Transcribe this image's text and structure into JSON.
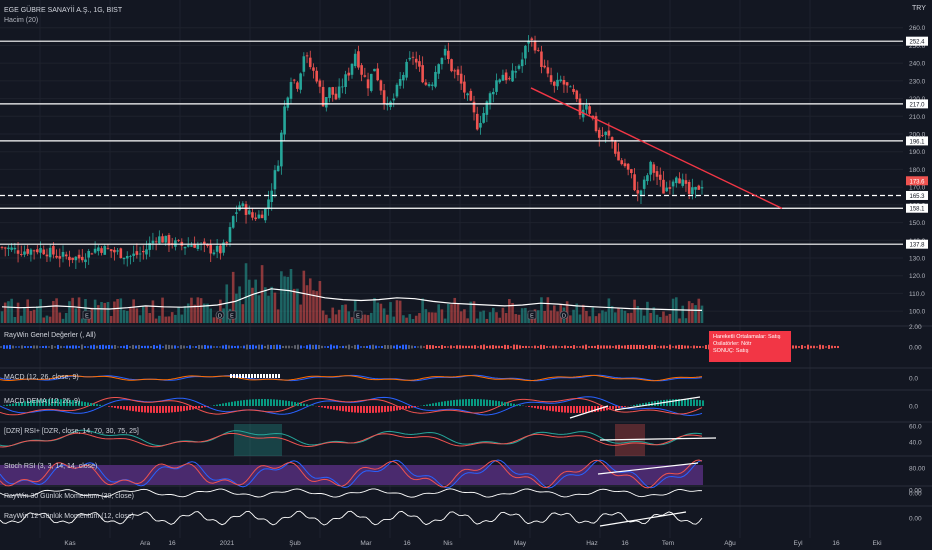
{
  "header": {
    "symbol_title": "EGE GÜBRE SANAYİİ A.Ş., 1G, BIST",
    "volume_label": "Hacim (20)",
    "currency": "TRY"
  },
  "colors": {
    "background": "#131722",
    "up": "#26a69a",
    "down": "#ef5350",
    "grid": "#1e222d",
    "text": "#b2b5be",
    "level_line": "#ffffff",
    "trendline": "#f23645",
    "stoch_band": "#4a2a6e"
  },
  "chart_data": {
    "type": "candlestick",
    "price_axis_ticks": [
      "260.0",
      "250.0",
      "240.0",
      "230.0",
      "220.0",
      "210.0",
      "200.0",
      "190.0",
      "180.0",
      "170.0",
      "160.0",
      "150.0",
      "140.0",
      "130.0",
      "120.0",
      "110.0",
      "100.0"
    ],
    "date_axis_ticks": [
      "Kas",
      "Ara",
      "16",
      "2021",
      "Şub",
      "Mar",
      "16",
      "Nis",
      "May",
      "Haz",
      "16",
      "Tem",
      "Ağu",
      "Eyl",
      "16",
      "Eki"
    ],
    "ylim": [
      95,
      270
    ],
    "level_labels": [
      "252.4",
      "217.0",
      "196.1",
      "173.6",
      "165.3",
      "158.1",
      "137.8"
    ],
    "levels": [
      252.4,
      217.0,
      196.1,
      165.3,
      158.1,
      137.8
    ],
    "dashed_level": 165.3,
    "last_price": 173.6,
    "trendline": {
      "from_date": "May",
      "from_price": 226,
      "to_date": "Tem",
      "to_price": 158
    },
    "price_path": [
      [
        0,
        136
      ],
      [
        6,
        134
      ],
      [
        12,
        135
      ],
      [
        18,
        131
      ],
      [
        24,
        130
      ],
      [
        30,
        136
      ],
      [
        36,
        133
      ],
      [
        40,
        131
      ],
      [
        44,
        133
      ],
      [
        48,
        142
      ],
      [
        52,
        139
      ],
      [
        56,
        137
      ],
      [
        60,
        138
      ],
      [
        64,
        135
      ],
      [
        68,
        134
      ],
      [
        70,
        138
      ],
      [
        72,
        153
      ],
      [
        74,
        160
      ],
      [
        76,
        157
      ],
      [
        78,
        153
      ],
      [
        80,
        154
      ],
      [
        82,
        157
      ],
      [
        84,
        170
      ],
      [
        86,
        185
      ],
      [
        88,
        215
      ],
      [
        90,
        232
      ],
      [
        92,
        228
      ],
      [
        94,
        245
      ],
      [
        96,
        238
      ],
      [
        98,
        232
      ],
      [
        100,
        218
      ],
      [
        102,
        225
      ],
      [
        104,
        220
      ],
      [
        106,
        228
      ],
      [
        108,
        235
      ],
      [
        110,
        246
      ],
      [
        112,
        235
      ],
      [
        114,
        228
      ],
      [
        116,
        238
      ],
      [
        118,
        226
      ],
      [
        120,
        214
      ],
      [
        122,
        220
      ],
      [
        124,
        230
      ],
      [
        126,
        238
      ],
      [
        128,
        244
      ],
      [
        130,
        236
      ],
      [
        132,
        228
      ],
      [
        134,
        230
      ],
      [
        136,
        242
      ],
      [
        138,
        246
      ],
      [
        140,
        237
      ],
      [
        142,
        232
      ],
      [
        144,
        224
      ],
      [
        146,
        216
      ],
      [
        148,
        205
      ],
      [
        150,
        212
      ],
      [
        152,
        222
      ],
      [
        154,
        230
      ],
      [
        156,
        234
      ],
      [
        158,
        230
      ],
      [
        160,
        236
      ],
      [
        162,
        242
      ],
      [
        164,
        254
      ],
      [
        166,
        250
      ],
      [
        168,
        240
      ],
      [
        170,
        232
      ],
      [
        172,
        226
      ],
      [
        174,
        230
      ],
      [
        176,
        226
      ],
      [
        178,
        222
      ],
      [
        180,
        212
      ],
      [
        182,
        218
      ],
      [
        184,
        208
      ],
      [
        186,
        198
      ],
      [
        188,
        200
      ],
      [
        190,
        196
      ],
      [
        192,
        185
      ],
      [
        194,
        182
      ],
      [
        196,
        176
      ],
      [
        198,
        165
      ],
      [
        200,
        172
      ],
      [
        202,
        182
      ],
      [
        204,
        176
      ],
      [
        206,
        168
      ],
      [
        208,
        172
      ],
      [
        210,
        178
      ],
      [
        212,
        172
      ],
      [
        214,
        166
      ],
      [
        216,
        168
      ],
      [
        218,
        172
      ]
    ],
    "volume_axis_tick": "2.00",
    "volume_markers": [
      "E",
      "E",
      "D",
      "E",
      "E",
      "D"
    ],
    "volume_ma": [
      0.9,
      0.85,
      0.88,
      0.95,
      0.9,
      0.8,
      0.78,
      0.85,
      0.95,
      0.9,
      0.88,
      0.92,
      1.0,
      1.2,
      1.6,
      1.9,
      1.8,
      1.6,
      1.4,
      1.3,
      1.25,
      1.3,
      1.4,
      1.35,
      1.2,
      1.1,
      1.05,
      1.0,
      0.95,
      1.0,
      1.1,
      1.05,
      0.95,
      0.9,
      0.85,
      0.8,
      0.78,
      0.75,
      0.72,
      0.7
    ],
    "indicators": [
      {
        "name": "RayWin Genel Değerler (, All)",
        "axis_ticks": [
          "0.00"
        ]
      },
      {
        "name": "MACD (12, 26, close, 9)",
        "axis_ticks": [
          "0.0"
        ]
      },
      {
        "name": "MACD DEMA (12, 26, 9)",
        "axis_ticks": [
          "0.0"
        ]
      },
      {
        "name": "[DZR] RSI+ [DZR, close, 14, 70, 30, 75, 25]",
        "axis_ticks": [
          "60.0",
          "40.0"
        ]
      },
      {
        "name": "Stoch RSI (3, 3, 14, 14, close)",
        "axis_ticks": [
          "80.00",
          "0.00"
        ]
      },
      {
        "name": "RayWin 30 Günlük Momentum (30, close)",
        "axis_ticks": [
          "0.00"
        ]
      },
      {
        "name": "RayWin 12 Günlük Momentum (12, close)",
        "axis_ticks": [
          "0.00"
        ]
      }
    ]
  },
  "signal_box": {
    "line1": "Hareketli Ortalamalar:      Satış",
    "line2": "Osilatörler: Nötr",
    "line3": "SONUÇ:  Satış"
  }
}
